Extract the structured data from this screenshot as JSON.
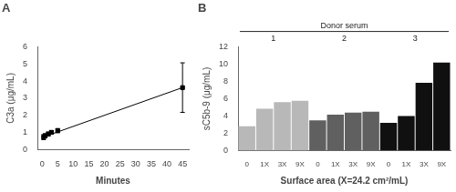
{
  "chart_data": [
    {
      "type": "scatter",
      "title": "A",
      "xlabel": "Minutes",
      "ylabel": "C3a (μg/mL)",
      "xlim": [
        -1.5,
        47
      ],
      "ylim": [
        0,
        6
      ],
      "xticks": [
        0,
        5,
        10,
        15,
        20,
        25,
        30,
        35,
        40,
        45
      ],
      "yticks": [
        0,
        1,
        2,
        3,
        4,
        5,
        6
      ],
      "grid": false,
      "series": [
        {
          "type": "scatter",
          "color": "black",
          "marker": "square",
          "x": [
            0.5,
            1,
            2,
            3,
            5,
            45
          ],
          "values": [
            0.72,
            0.8,
            0.9,
            1.0,
            1.1,
            3.62
          ],
          "yerr": [
            0.15,
            0.12,
            0.12,
            0.1,
            0.12,
            1.45
          ]
        },
        {
          "type": "line",
          "color": "black",
          "line_style": "solid",
          "x": [
            0,
            45
          ],
          "values": [
            0.7,
            3.62
          ]
        }
      ]
    },
    {
      "type": "bar",
      "title": "B",
      "xlabel": "Surface area (X=24.2 cm²/mL)",
      "ylabel": "sC5b-9 (μg/mL)",
      "ylim": [
        0,
        12
      ],
      "yticks": [
        0,
        2,
        4,
        6,
        8,
        10,
        12
      ],
      "grid": false,
      "group_title": "Donor serum",
      "groups": [
        {
          "label": "1",
          "color": "#b8b8b8",
          "categories": [
            "0",
            "1X",
            "3X",
            "9X"
          ],
          "values": [
            2.8,
            4.85,
            5.6,
            5.75
          ]
        },
        {
          "label": "2",
          "color": "#606060",
          "categories": [
            "0",
            "1X",
            "3X",
            "9X"
          ],
          "values": [
            3.5,
            4.15,
            4.4,
            4.5
          ]
        },
        {
          "label": "3",
          "color": "#101010",
          "categories": [
            "0",
            "1X",
            "3X",
            "9X"
          ],
          "values": [
            3.2,
            4.0,
            7.85,
            10.2
          ]
        }
      ]
    }
  ]
}
